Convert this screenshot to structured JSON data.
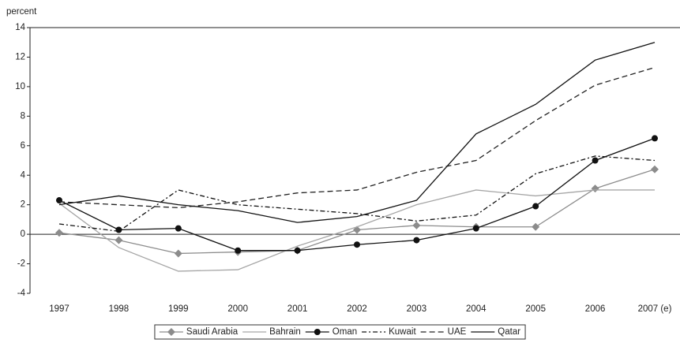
{
  "chart_data": {
    "type": "line",
    "y_label": "percent",
    "categories": [
      "1997",
      "1998",
      "1999",
      "2000",
      "2001",
      "2002",
      "2003",
      "2004",
      "2005",
      "2006",
      "2007 (e)"
    ],
    "ylim": [
      -4,
      14
    ],
    "yticks": [
      -4,
      -2,
      0,
      2,
      4,
      6,
      8,
      10,
      12,
      14
    ],
    "series": [
      {
        "name": "Saudi Arabia",
        "color": "#8c8c8c",
        "style": "solid",
        "marker": "diamond",
        "values": [
          0.1,
          -0.4,
          -1.3,
          -1.2,
          -1.1,
          0.3,
          0.6,
          0.5,
          0.5,
          3.1,
          4.4
        ]
      },
      {
        "name": "Bahrain",
        "color": "#a6a6a6",
        "style": "solid",
        "marker": "none",
        "values": [
          2.1,
          -0.9,
          -2.5,
          -2.4,
          -0.8,
          0.5,
          2.0,
          3.0,
          2.6,
          3.0,
          3.0
        ]
      },
      {
        "name": "Oman",
        "color": "#111111",
        "style": "solid",
        "marker": "circle",
        "values": [
          2.3,
          0.3,
          0.4,
          -1.1,
          -1.1,
          -0.7,
          -0.4,
          0.4,
          1.9,
          5.0,
          6.5
        ]
      },
      {
        "name": "Kuwait",
        "color": "#111111",
        "style": "dash-dot",
        "marker": "none",
        "values": [
          0.7,
          0.2,
          3.0,
          2.0,
          1.7,
          1.4,
          0.9,
          1.3,
          4.1,
          5.3,
          5.0
        ]
      },
      {
        "name": "UAE",
        "color": "#222222",
        "style": "dash",
        "marker": "none",
        "values": [
          2.2,
          2.0,
          1.8,
          2.2,
          2.8,
          3.0,
          4.2,
          5.0,
          7.7,
          10.1,
          11.3
        ]
      },
      {
        "name": "Qatar",
        "color": "#111111",
        "style": "solid",
        "marker": "none",
        "values": [
          2.0,
          2.6,
          2.0,
          1.6,
          0.8,
          1.2,
          2.3,
          6.8,
          8.8,
          11.8,
          13.0
        ]
      }
    ]
  }
}
